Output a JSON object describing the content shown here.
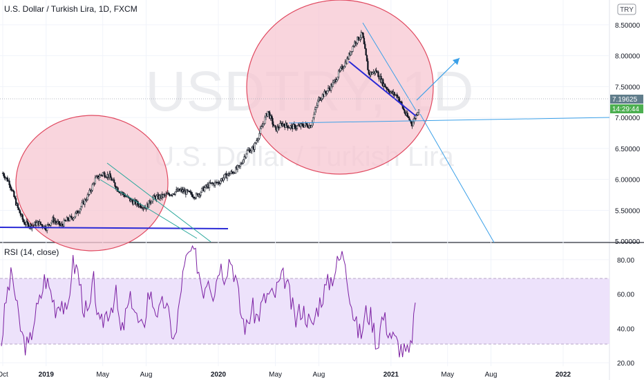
{
  "header": {
    "title": "U.S. Dollar / Turkish Lira, 1D, FXCM",
    "currency_badge": "TRY"
  },
  "watermark": {
    "symbol": "USDTRY, 1D",
    "description": "U.S. Dollar / Turkish Lira"
  },
  "price_tags": {
    "last_price": "7.19625",
    "countdown": "14:29:44"
  },
  "rsi_panel": {
    "label": "RSI (14, close)"
  },
  "colors": {
    "candle": "#131722",
    "rsi_line": "#7b1fa2",
    "rsi_band": "#ede2fb",
    "ellipse_fill": "#f7c7d2",
    "ellipse_stroke": "#e0485f",
    "blue_line": "#2a2ad6",
    "light_blue": "#3aa0e8",
    "teal": "#26a69a",
    "last_price_tag": "#607d8b",
    "countdown_tag": "#4caf50"
  },
  "chart_data": [
    {
      "type": "candlestick",
      "title": "U.S. Dollar / Turkish Lira, 1D, FXCM",
      "x_tick_labels": [
        "Oct",
        "2019",
        "May",
        "Aug",
        "2020",
        "May",
        "Aug",
        "2021",
        "May",
        "Aug",
        "2022"
      ],
      "y_tick_labels": [
        "5.00000",
        "5.50000",
        "6.00000",
        "6.50000",
        "7.00000",
        "7.50000",
        "8.00000",
        "8.50000"
      ],
      "ylim": [
        4.98,
        8.9
      ],
      "last_value": 7.19625,
      "series": [
        {
          "x": [
            "2018-10-01",
            "2018-10-15",
            "2018-11-01",
            "2018-11-15",
            "2018-12-01",
            "2018-12-15",
            "2019-01-01",
            "2019-01-15",
            "2019-02-01",
            "2019-02-15",
            "2019-03-01",
            "2019-03-15",
            "2019-04-01",
            "2019-04-15",
            "2019-05-01",
            "2019-05-15",
            "2019-06-01",
            "2019-06-15",
            "2019-07-01",
            "2019-07-15",
            "2019-08-01",
            "2019-08-15",
            "2019-09-01",
            "2019-09-15",
            "2019-10-01",
            "2019-10-15",
            "2019-11-01",
            "2019-11-15",
            "2019-12-01",
            "2019-12-15",
            "2020-01-01",
            "2020-01-15",
            "2020-02-01",
            "2020-02-15",
            "2020-03-01",
            "2020-03-15",
            "2020-04-01",
            "2020-04-15",
            "2020-05-01",
            "2020-05-15",
            "2020-06-01",
            "2020-06-15",
            "2020-07-01",
            "2020-07-15",
            "2020-08-01",
            "2020-08-15",
            "2020-09-01",
            "2020-09-15",
            "2020-10-01",
            "2020-10-15",
            "2020-11-01",
            "2020-11-15",
            "2020-12-01",
            "2020-12-15",
            "2021-01-01",
            "2021-01-15",
            "2021-02-01",
            "2021-02-15",
            "2021-03-01"
          ],
          "y": [
            6.1,
            5.95,
            5.55,
            5.3,
            5.25,
            5.3,
            5.22,
            5.35,
            5.25,
            5.35,
            5.4,
            5.55,
            5.75,
            6.0,
            6.1,
            6.05,
            5.85,
            5.75,
            5.65,
            5.6,
            5.55,
            5.7,
            5.72,
            5.75,
            5.8,
            5.82,
            5.77,
            5.73,
            5.85,
            5.92,
            5.95,
            6.05,
            6.12,
            6.2,
            6.45,
            6.5,
            6.82,
            7.1,
            6.8,
            6.9,
            6.85,
            6.85,
            6.88,
            6.87,
            7.3,
            7.4,
            7.55,
            7.75,
            7.95,
            8.2,
            8.35,
            7.7,
            7.75,
            7.55,
            7.4,
            7.35,
            7.05,
            6.9,
            7.15
          ]
        }
      ]
    },
    {
      "type": "line",
      "title": "RSI (14, close)",
      "y_tick_labels": [
        "20.00",
        "40.00",
        "60.00",
        "80.00"
      ],
      "ylim": [
        18,
        90
      ],
      "series": [
        {
          "name": "RSI (14, close)",
          "y": [
            32,
            60,
            72,
            48,
            33,
            28,
            46,
            55,
            70,
            62,
            52,
            58,
            45,
            78,
            74,
            54,
            46,
            68,
            38,
            48,
            52,
            60,
            35,
            50,
            58,
            44,
            38,
            62,
            54,
            48,
            57,
            42,
            33,
            65,
            80,
            86,
            78,
            62,
            72,
            60,
            78,
            72,
            82,
            70,
            48,
            40,
            52,
            46,
            55,
            60,
            58,
            66,
            70,
            58,
            44,
            52,
            48,
            40,
            52,
            60,
            66,
            72,
            80,
            84,
            60,
            42,
            36,
            50,
            46,
            30,
            48,
            40,
            34,
            30,
            26,
            24,
            55
          ]
        }
      ]
    }
  ]
}
